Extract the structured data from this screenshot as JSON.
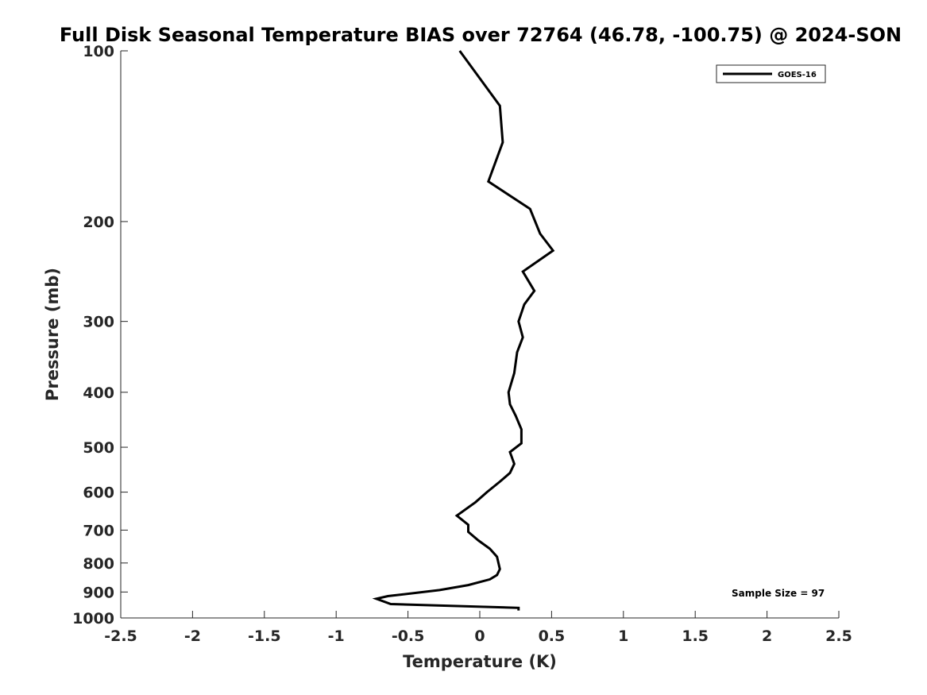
{
  "chart_data": {
    "type": "line",
    "title": "Full Disk Seasonal Temperature BIAS over 72764 (46.78, -100.75) @ 2024-SON",
    "xlabel": "Temperature (K)",
    "ylabel": "Pressure (mb)",
    "xlim": [
      -2.5,
      2.5
    ],
    "ylim": [
      100,
      1000
    ],
    "yscale": "log",
    "y_reversed": true,
    "grid": false,
    "legend_position": "top-right",
    "x_ticks": [
      "-2.5",
      "-2",
      "-1.5",
      "-1",
      "-0.5",
      "0",
      "0.5",
      "1",
      "1.5",
      "2",
      "2.5"
    ],
    "y_ticks": [
      "100",
      "200",
      "300",
      "400",
      "500",
      "600",
      "700",
      "800",
      "900",
      "1000"
    ],
    "series": [
      {
        "name": "GOES-16",
        "color": "#000000",
        "points": [
          {
            "x": -0.14,
            "y": 100
          },
          {
            "x": 0.14,
            "y": 125
          },
          {
            "x": 0.16,
            "y": 145
          },
          {
            "x": 0.06,
            "y": 170
          },
          {
            "x": 0.35,
            "y": 190
          },
          {
            "x": 0.42,
            "y": 210
          },
          {
            "x": 0.51,
            "y": 225
          },
          {
            "x": 0.3,
            "y": 245
          },
          {
            "x": 0.38,
            "y": 265
          },
          {
            "x": 0.31,
            "y": 280
          },
          {
            "x": 0.27,
            "y": 300
          },
          {
            "x": 0.3,
            "y": 320
          },
          {
            "x": 0.26,
            "y": 340
          },
          {
            "x": 0.24,
            "y": 370
          },
          {
            "x": 0.2,
            "y": 400
          },
          {
            "x": 0.21,
            "y": 420
          },
          {
            "x": 0.25,
            "y": 440
          },
          {
            "x": 0.29,
            "y": 465
          },
          {
            "x": 0.29,
            "y": 492
          },
          {
            "x": 0.21,
            "y": 510
          },
          {
            "x": 0.24,
            "y": 535
          },
          {
            "x": 0.21,
            "y": 555
          },
          {
            "x": 0.14,
            "y": 575
          },
          {
            "x": 0.05,
            "y": 600
          },
          {
            "x": -0.03,
            "y": 625
          },
          {
            "x": -0.16,
            "y": 660
          },
          {
            "x": -0.08,
            "y": 685
          },
          {
            "x": -0.08,
            "y": 705
          },
          {
            "x": -0.01,
            "y": 730
          },
          {
            "x": 0.07,
            "y": 755
          },
          {
            "x": 0.12,
            "y": 780
          },
          {
            "x": 0.13,
            "y": 800
          },
          {
            "x": 0.14,
            "y": 820
          },
          {
            "x": 0.12,
            "y": 840
          },
          {
            "x": 0.07,
            "y": 855
          },
          {
            "x": -0.08,
            "y": 875
          },
          {
            "x": -0.28,
            "y": 893
          },
          {
            "x": -0.64,
            "y": 915
          },
          {
            "x": -0.72,
            "y": 925
          },
          {
            "x": -0.62,
            "y": 945
          },
          {
            "x": 0.27,
            "y": 960
          },
          {
            "x": 0.27,
            "y": 970
          }
        ]
      }
    ],
    "annotations": [
      "Sample Size = 97"
    ]
  }
}
